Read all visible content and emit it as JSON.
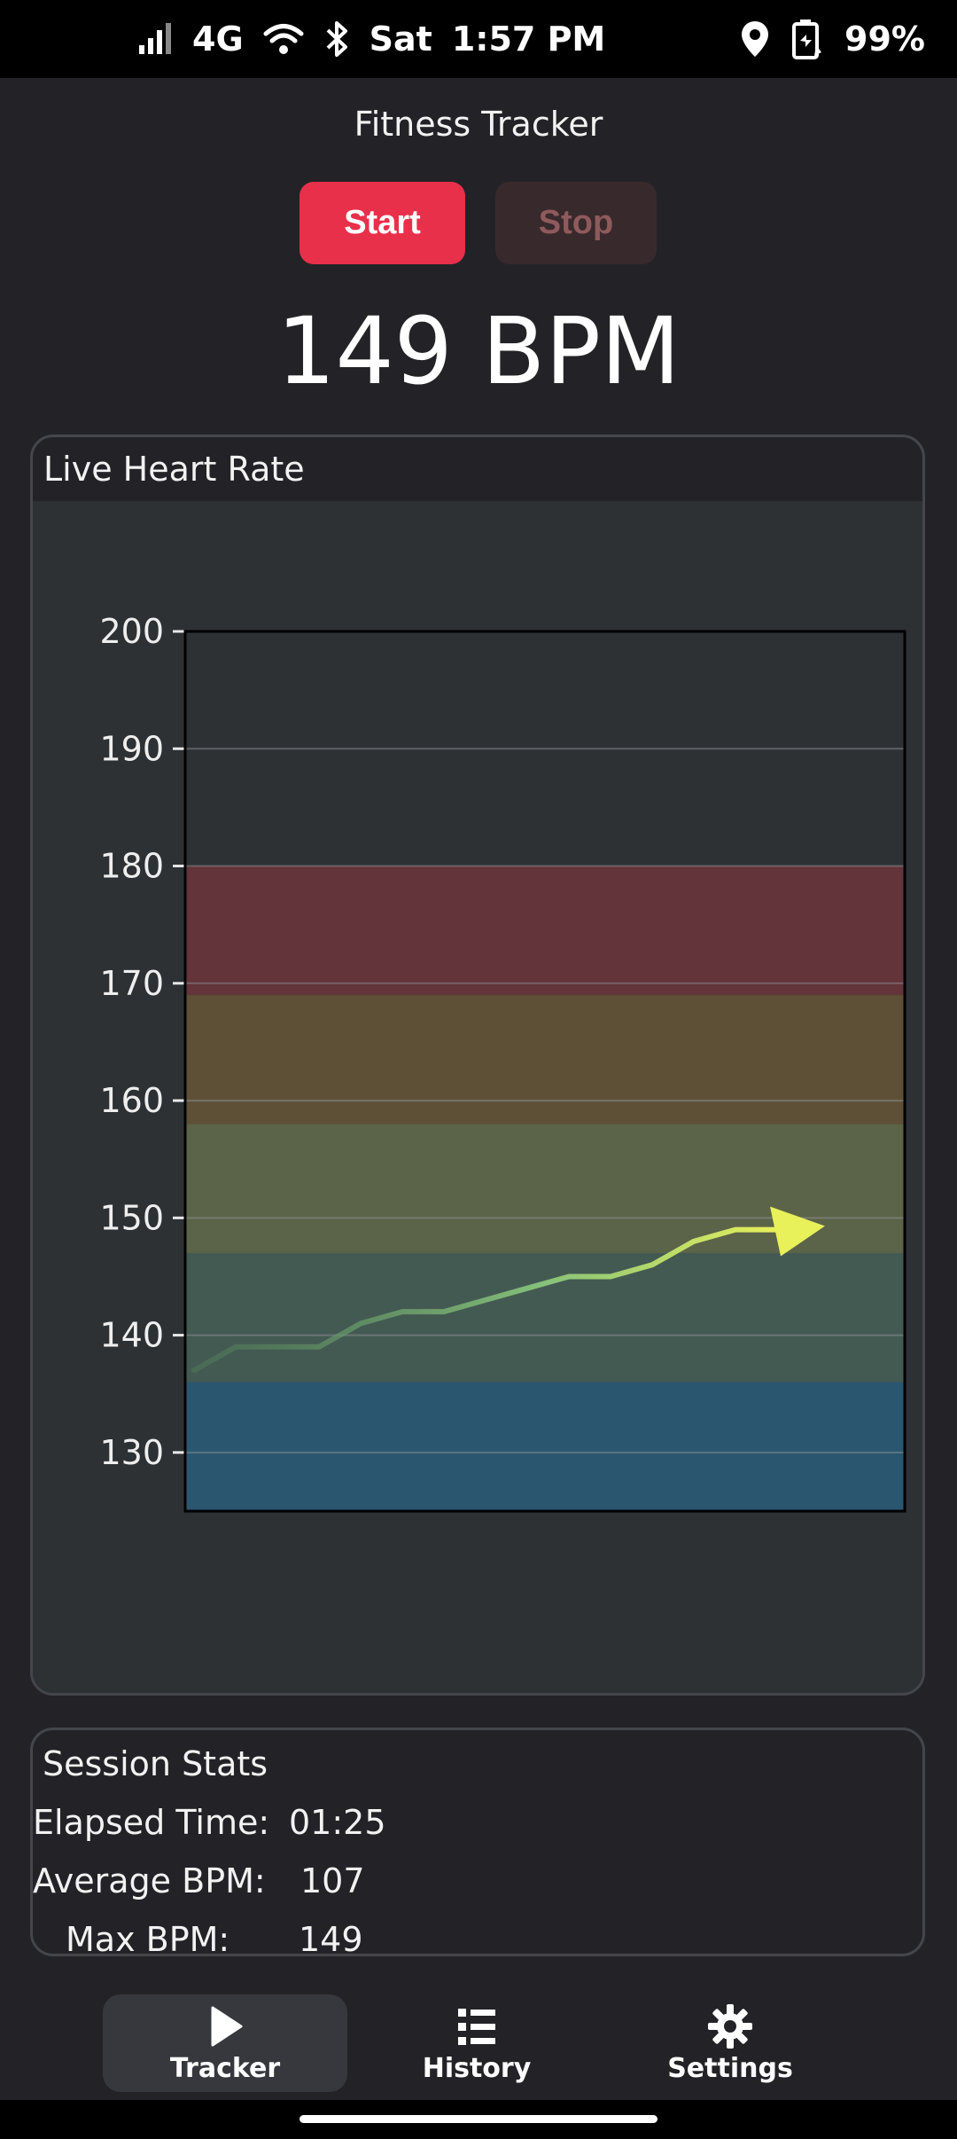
{
  "status_bar": {
    "network": "4G",
    "day": "Sat",
    "time": "1:57 PM",
    "battery": "99%",
    "icons": [
      "signal-icon",
      "wifi-icon",
      "bluetooth-icon",
      "location-icon",
      "battery-saver-icon"
    ]
  },
  "app": {
    "title": "Fitness Tracker",
    "start_label": "Start",
    "stop_label": "Stop",
    "bpm_display": "149 BPM"
  },
  "chart_card": {
    "title": "Live Heart Rate"
  },
  "chart_data": {
    "type": "line",
    "title": "",
    "xlabel": "",
    "ylabel": "",
    "ylim": [
      125,
      200
    ],
    "yticks": [
      130,
      140,
      150,
      160,
      170,
      180,
      190,
      200
    ],
    "grid": true,
    "legend": "none",
    "zones": [
      {
        "from": 125,
        "to": 136,
        "color": "#2b5670"
      },
      {
        "from": 136,
        "to": 147,
        "color": "#435a52"
      },
      {
        "from": 147,
        "to": 158,
        "color": "#5b6348"
      },
      {
        "from": 158,
        "to": 169,
        "color": "#5e5036"
      },
      {
        "from": 169,
        "to": 180,
        "color": "#63343a"
      }
    ],
    "series": [
      {
        "values": [
          137,
          139,
          139,
          139,
          141,
          142,
          142,
          143,
          144,
          145,
          145,
          146,
          148,
          149,
          149
        ],
        "arrow_color": "#e8f05a"
      }
    ]
  },
  "stats": {
    "title": "Session Stats",
    "elapsed_label": "Elapsed Time:",
    "elapsed_value": "01:25",
    "avg_label": "Average BPM:",
    "avg_value": "107",
    "max_label": "Max BPM:",
    "max_value": "149"
  },
  "nav": {
    "tracker": "Tracker",
    "history": "History",
    "settings": "Settings",
    "active": "tracker"
  }
}
